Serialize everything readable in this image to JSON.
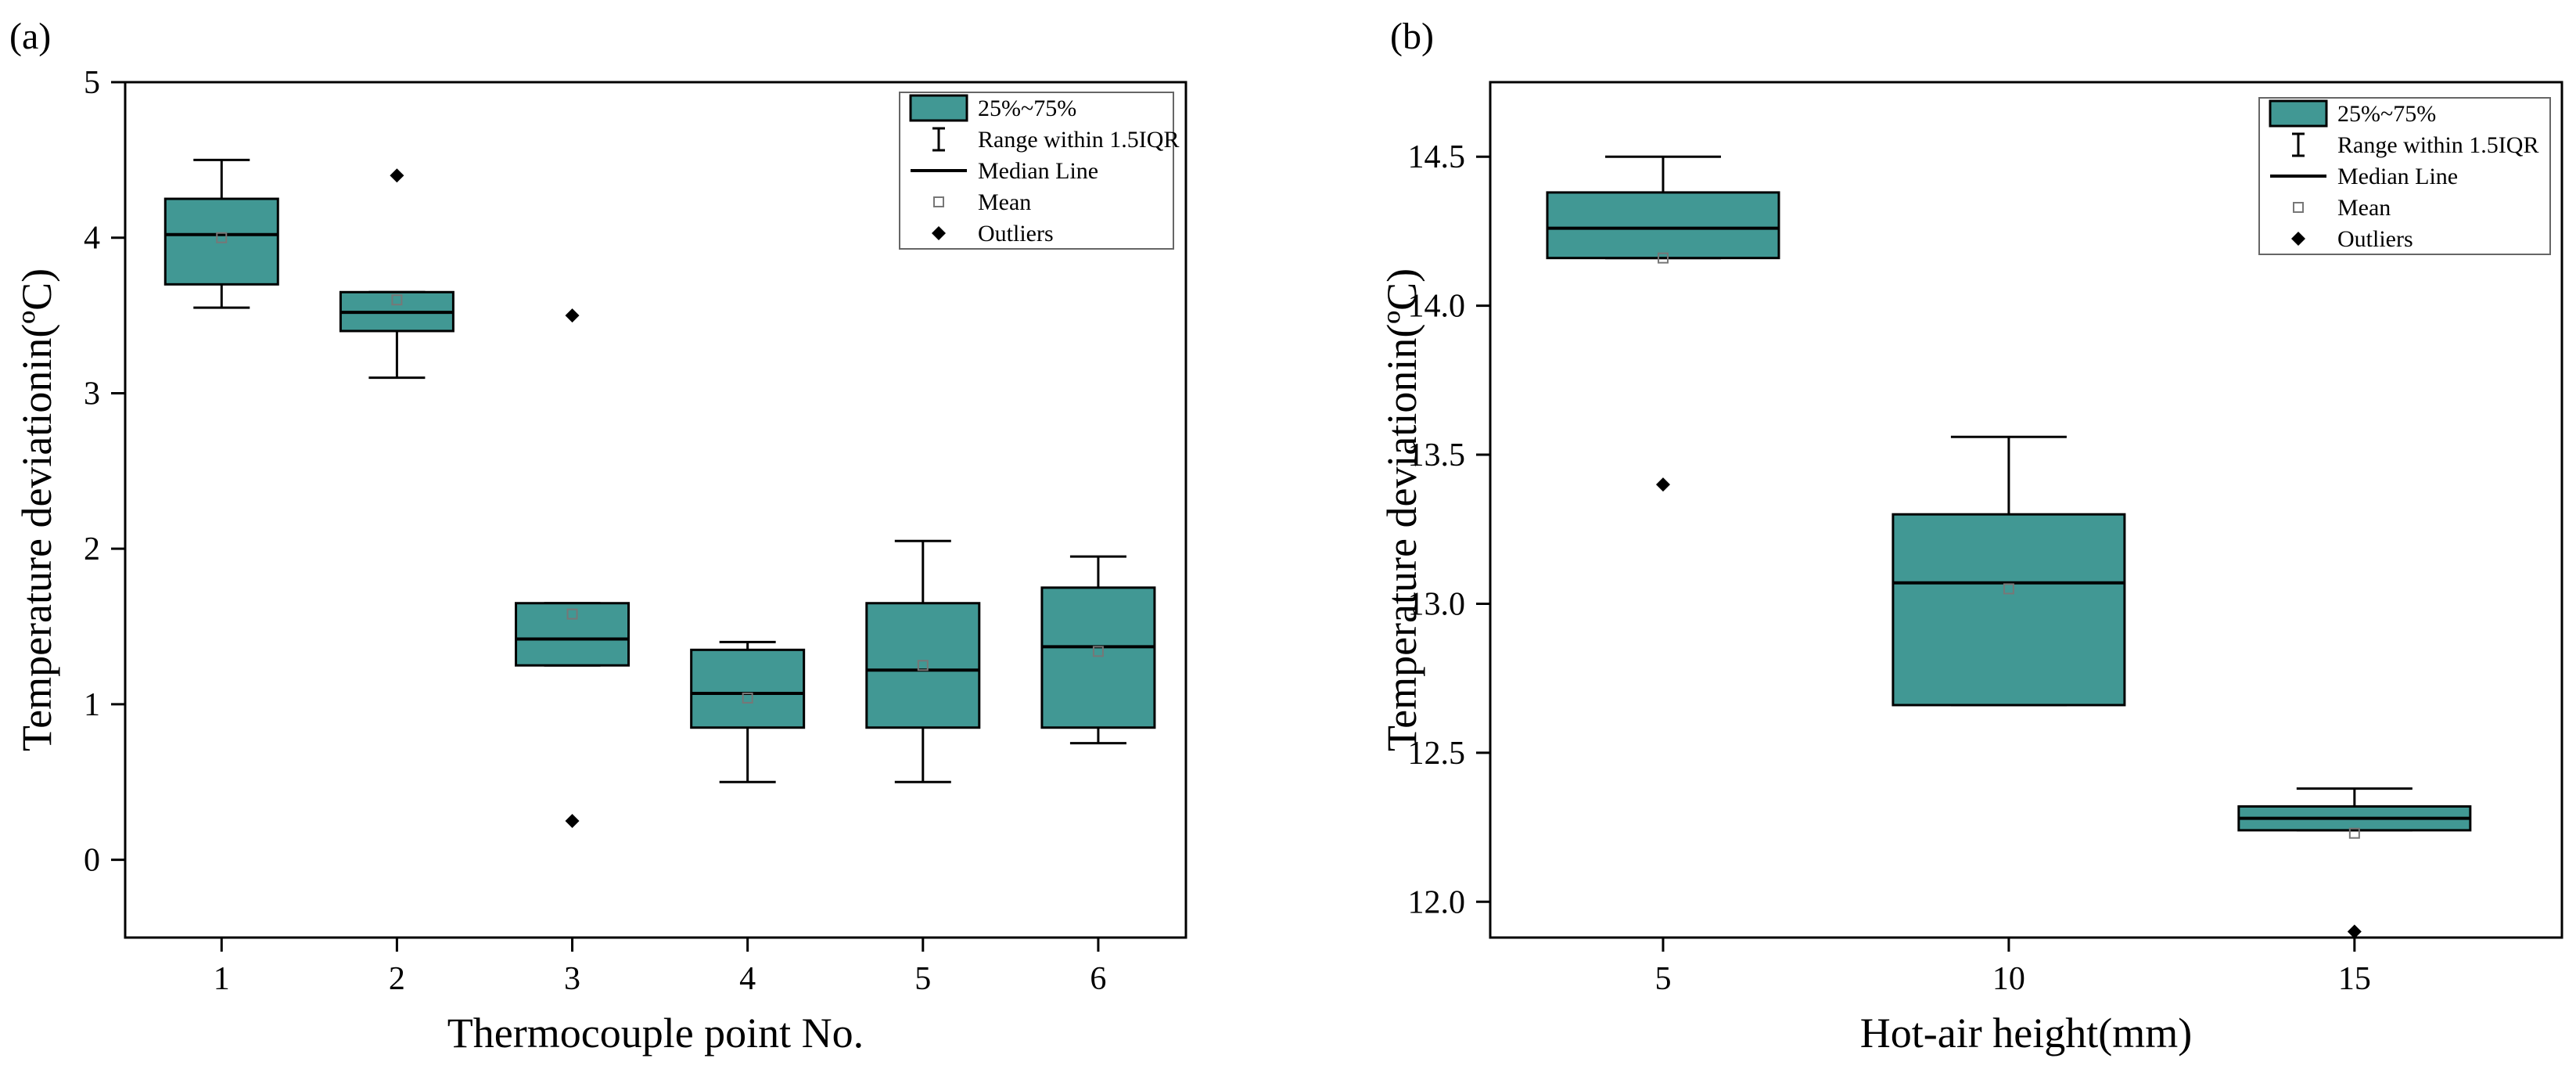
{
  "colors": {
    "box_fill": "#419894",
    "stroke": "#000000",
    "mean_marker": "#777777",
    "background": "#ffffff"
  },
  "legend_items": {
    "box": "25%~75%",
    "range": "Range within 1.5IQR",
    "median": "Median Line",
    "mean": "Mean",
    "outliers": "Outliers"
  },
  "chart_data": [
    {
      "type": "box",
      "panel_label": "(a)",
      "xlabel": "Thermocouple point No.",
      "ylabel": "Temperature deviationin(ºC)",
      "ylim": [
        -0.5,
        5
      ],
      "yticks": [
        0,
        1,
        2,
        3,
        4,
        5
      ],
      "ytick_labels": [
        "0",
        "1",
        "2",
        "3",
        "4",
        "5"
      ],
      "xlim": [
        0.45,
        6.5
      ],
      "legend_position": "top-right",
      "categories": [
        "1",
        "2",
        "3",
        "4",
        "5",
        "6"
      ],
      "boxes": [
        {
          "x": 1,
          "q1": 3.7,
          "median": 4.02,
          "q3": 4.25,
          "whisker_low": 3.55,
          "whisker_high": 4.5,
          "mean": 4.0,
          "outliers": []
        },
        {
          "x": 2,
          "q1": 3.4,
          "median": 3.52,
          "q3": 3.65,
          "whisker_low": 3.1,
          "whisker_high": 3.65,
          "mean": 3.6,
          "outliers": [
            4.4
          ]
        },
        {
          "x": 3,
          "q1": 1.25,
          "median": 1.42,
          "q3": 1.65,
          "whisker_low": 1.25,
          "whisker_high": 1.65,
          "mean": 1.58,
          "outliers": [
            3.5,
            0.25
          ]
        },
        {
          "x": 4,
          "q1": 0.85,
          "median": 1.07,
          "q3": 1.35,
          "whisker_low": 0.5,
          "whisker_high": 1.4,
          "mean": 1.04,
          "outliers": []
        },
        {
          "x": 5,
          "q1": 0.85,
          "median": 1.22,
          "q3": 1.65,
          "whisker_low": 0.5,
          "whisker_high": 2.05,
          "mean": 1.25,
          "outliers": []
        },
        {
          "x": 6,
          "q1": 0.85,
          "median": 1.37,
          "q3": 1.75,
          "whisker_low": 0.75,
          "whisker_high": 1.95,
          "mean": 1.34,
          "outliers": []
        }
      ]
    },
    {
      "type": "box",
      "panel_label": "(b)",
      "xlabel": "Hot-air height(mm)",
      "ylabel": "Temperature deviationin(ºC)",
      "ylim": [
        11.88,
        14.75
      ],
      "yticks": [
        12.0,
        12.5,
        13.0,
        13.5,
        14.0,
        14.5
      ],
      "ytick_labels": [
        "12.0",
        "12.5",
        "13.0",
        "13.5",
        "14.0",
        "14.5"
      ],
      "xlim": [
        2.5,
        18
      ],
      "legend_position": "top-right",
      "categories": [
        "5",
        "10",
        "15"
      ],
      "boxes": [
        {
          "x": 5,
          "q1": 14.16,
          "median": 14.26,
          "q3": 14.38,
          "whisker_low": 14.16,
          "whisker_high": 14.5,
          "mean": 14.16,
          "outliers": [
            13.4
          ]
        },
        {
          "x": 10,
          "q1": 12.66,
          "median": 13.07,
          "q3": 13.3,
          "whisker_low": 12.66,
          "whisker_high": 13.56,
          "mean": 13.05,
          "outliers": []
        },
        {
          "x": 15,
          "q1": 12.24,
          "median": 12.28,
          "q3": 12.32,
          "whisker_low": 12.24,
          "whisker_high": 12.38,
          "mean": 12.23,
          "outliers": [
            11.9
          ]
        }
      ]
    }
  ]
}
